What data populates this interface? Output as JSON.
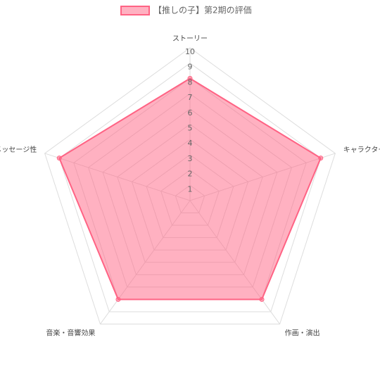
{
  "chart_data": {
    "type": "radar",
    "categories": [
      "ストーリー",
      "キャラクター",
      "作画・演出",
      "音楽・音響効果",
      "メッセージ性"
    ],
    "series": [
      {
        "name": "【推しの子】第2期の評価",
        "color": "#ff6384",
        "values": [
          8,
          9,
          8,
          8,
          9
        ]
      }
    ],
    "rlim": [
      0,
      10
    ],
    "rticks": [
      1,
      2,
      3,
      4,
      5,
      6,
      7,
      8,
      9,
      10
    ],
    "grid": true,
    "legend": "top"
  }
}
